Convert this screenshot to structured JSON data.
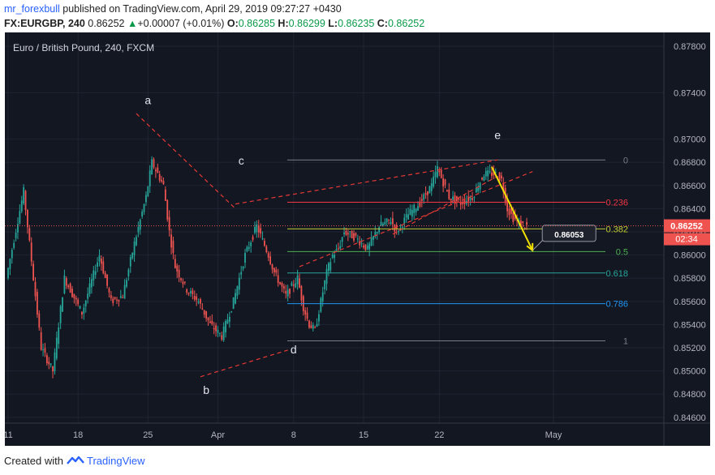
{
  "header": {
    "username": "mr_forexbull",
    "published_text": "published on TradingView.com, April 29, 2019 09:27:27 +0430",
    "symbol": "FX:EURGBP, 240",
    "last": "0.86252",
    "change_arrow": "▲",
    "change": "+0.00007 (+0.01%)",
    "open_label": "O:",
    "open": "0.86285",
    "high_label": "H:",
    "high": "0.86299",
    "low_label": "L:",
    "low": "0.86235",
    "close_label": "C:",
    "close": "0.86252"
  },
  "footer": {
    "created_with": "Created with",
    "brand": "TradingView"
  },
  "colors": {
    "background": "#131722",
    "up": "#26a69a",
    "down": "#ef5350",
    "price_tag": "#ef5350",
    "tag_text": "#ffffff",
    "arrow": "#f0e000",
    "grid": "#1f2433",
    "axis_text": "#b2b5be"
  },
  "chart_data": {
    "type": "candlestick",
    "title": "Euro / British Pound, 240, FXCM",
    "ylim": [
      0.8455,
      0.8792
    ],
    "y_ticks": [
      "0.87800",
      "0.87400",
      "0.87000",
      "0.86800",
      "0.86600",
      "0.86400",
      "0.86200",
      "0.86000",
      "0.85800",
      "0.85600",
      "0.85400",
      "0.85200",
      "0.85000",
      "0.84800",
      "0.84600"
    ],
    "x_ticks": [
      "11",
      "18",
      "25",
      "Apr",
      "8",
      "15",
      "22",
      "May"
    ],
    "current_price": "0.86252",
    "countdown": "02:34",
    "pointer_label": "0.86053",
    "price_path": [
      [
        0,
        0.858
      ],
      [
        3,
        0.8655
      ],
      [
        6,
        0.852
      ],
      [
        8,
        0.85
      ],
      [
        10,
        0.858
      ],
      [
        13,
        0.855
      ],
      [
        16,
        0.86
      ],
      [
        18,
        0.856
      ],
      [
        20,
        0.8565
      ],
      [
        22,
        0.861
      ],
      [
        24,
        0.865
      ],
      [
        25,
        0.868
      ],
      [
        27,
        0.866
      ],
      [
        28,
        0.862
      ],
      [
        29,
        0.859
      ],
      [
        31,
        0.857
      ],
      [
        33,
        0.856
      ],
      [
        35,
        0.854
      ],
      [
        37,
        0.853
      ],
      [
        39,
        0.856
      ],
      [
        41,
        0.86
      ],
      [
        43,
        0.8625
      ],
      [
        45,
        0.86
      ],
      [
        46,
        0.8585
      ],
      [
        48,
        0.8565
      ],
      [
        50,
        0.858
      ],
      [
        51,
        0.8555
      ],
      [
        52,
        0.854
      ],
      [
        53,
        0.8535
      ],
      [
        54,
        0.856
      ],
      [
        55,
        0.8585
      ],
      [
        56,
        0.86
      ],
      [
        57,
        0.8605
      ],
      [
        58,
        0.862
      ],
      [
        60,
        0.8615
      ],
      [
        62,
        0.8605
      ],
      [
        64,
        0.8625
      ],
      [
        66,
        0.863
      ],
      [
        67,
        0.862
      ],
      [
        69,
        0.8635
      ],
      [
        71,
        0.8645
      ],
      [
        73,
        0.866
      ],
      [
        74,
        0.8675
      ],
      [
        76,
        0.865
      ],
      [
        78,
        0.8645
      ],
      [
        80,
        0.865
      ],
      [
        82,
        0.867
      ],
      [
        84,
        0.867
      ],
      [
        85,
        0.8665
      ],
      [
        86,
        0.864
      ],
      [
        87,
        0.8632
      ],
      [
        88,
        0.8628
      ],
      [
        89,
        0.8625
      ]
    ],
    "fibonacci": {
      "levels": [
        {
          "ratio": "0",
          "price": 0.8682,
          "color": "#787b86"
        },
        {
          "ratio": "0.236",
          "price": 0.86455,
          "color": "#f23645"
        },
        {
          "ratio": "0.382",
          "price": 0.86225,
          "color": "#c0ca33"
        },
        {
          "ratio": "0.5",
          "price": 0.8603,
          "color": "#4caf50"
        },
        {
          "ratio": "0.618",
          "price": 0.85845,
          "color": "#26a69a"
        },
        {
          "ratio": "0.786",
          "price": 0.8558,
          "color": "#2196f3"
        },
        {
          "ratio": "1",
          "price": 0.8526,
          "color": "#787b86"
        }
      ]
    },
    "wave_labels": [
      "a",
      "b",
      "c",
      "d",
      "e"
    ],
    "drawings": {
      "trendlines": [
        {
          "from": [
            22,
            0.8722
          ],
          "to": [
            39,
            0.864
          ]
        },
        {
          "from": [
            33,
            0.8495
          ],
          "to": [
            48,
            0.8518
          ]
        },
        {
          "from": [
            39,
            0.8644
          ],
          "to": [
            84,
            0.8682
          ]
        },
        {
          "from": [
            50,
            0.859
          ],
          "to": [
            90,
            0.8672
          ]
        },
        {
          "from": [
            66,
            0.8618
          ],
          "to": [
            84,
            0.8668
          ]
        }
      ],
      "arrow": {
        "from": [
          83,
          0.8676
        ],
        "to": [
          90,
          0.8604
        ]
      },
      "callout_point": [
        90,
        0.8604
      ]
    }
  }
}
